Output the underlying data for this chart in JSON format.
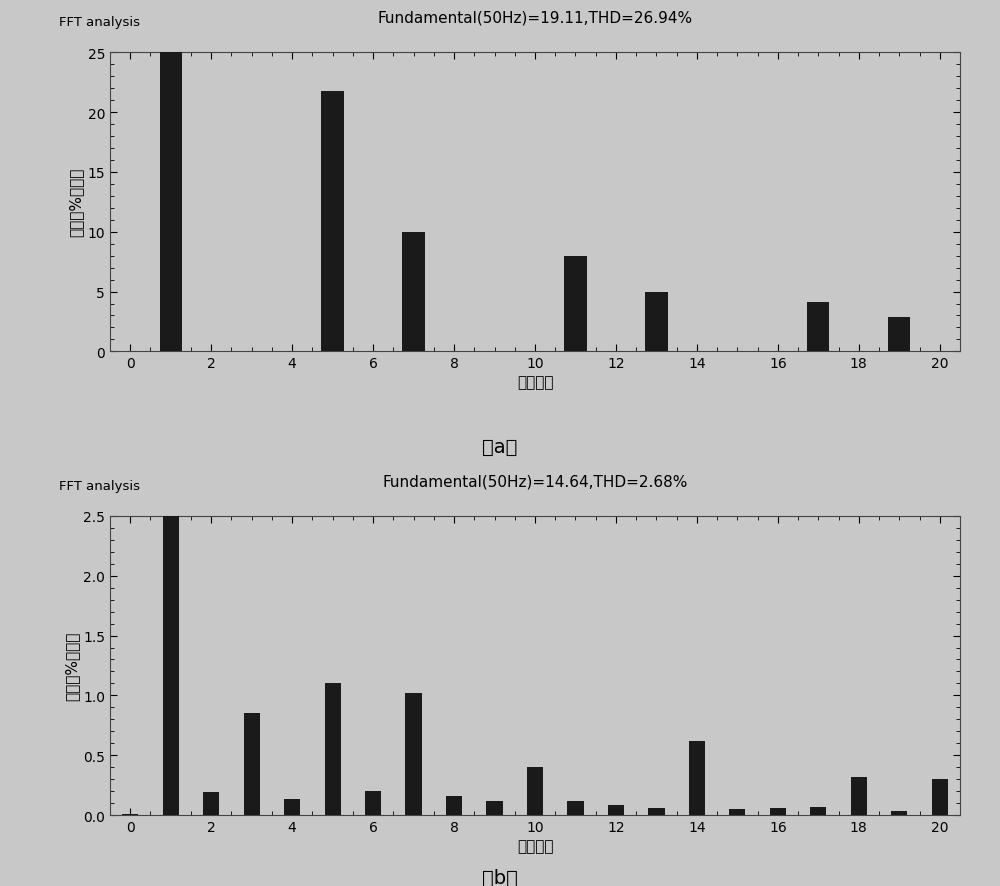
{
  "chart_a": {
    "title_text": "FFT analysis",
    "subtitle": "Fundamental(50Hz)=19.11,THD=26.94%",
    "xlabel": "谐波次数",
    "ylabel": "幅値（%基波）",
    "label_a": "（a）",
    "xlim": [
      -0.5,
      20.5
    ],
    "ylim": [
      0,
      25
    ],
    "yticks": [
      0,
      5,
      10,
      15,
      20,
      25
    ],
    "xticks": [
      0,
      2,
      4,
      6,
      8,
      10,
      12,
      14,
      16,
      18,
      20
    ],
    "bar_x": [
      1,
      5,
      7,
      11,
      13,
      17,
      19
    ],
    "bar_h": [
      25.5,
      21.8,
      10.0,
      8.0,
      5.0,
      4.1,
      2.9
    ],
    "bar_color": "#1a1a1a",
    "bar_width": 0.55
  },
  "chart_b": {
    "title_text": "FFT analysis",
    "subtitle": "Fundamental(50Hz)=14.64,THD=2.68%",
    "xlabel": "谐波次数",
    "ylabel": "幅値（%基波）",
    "label_b": "（b）",
    "xlim": [
      -0.5,
      20.5
    ],
    "ylim": [
      0,
      2.5
    ],
    "yticks": [
      0,
      0.5,
      1.0,
      1.5,
      2.0,
      2.5
    ],
    "xticks": [
      0,
      2,
      4,
      6,
      8,
      10,
      12,
      14,
      16,
      18,
      20
    ],
    "bar_x": [
      0,
      1,
      2,
      3,
      4,
      5,
      6,
      7,
      8,
      9,
      10,
      11,
      12,
      13,
      14,
      15,
      16,
      17,
      18,
      19,
      20
    ],
    "bar_h": [
      0.01,
      2.55,
      0.19,
      0.85,
      0.13,
      1.1,
      0.2,
      1.02,
      0.16,
      0.12,
      0.4,
      0.12,
      0.08,
      0.06,
      0.62,
      0.05,
      0.06,
      0.07,
      0.32,
      0.03,
      0.3
    ],
    "bar_color": "#1a1a1a",
    "bar_width": 0.4
  },
  "fig_bg": "#c8c8c8",
  "plot_bg": "#c8c8c8"
}
